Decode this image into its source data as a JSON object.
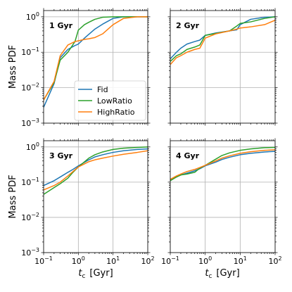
{
  "chart_data": {
    "type": "line",
    "xscale": "log",
    "yscale": "log",
    "xlim": [
      0.1,
      100
    ],
    "ylim": [
      0.001,
      1.5
    ],
    "grid": true,
    "xlabel_main": "t",
    "xlabel_sub": "c",
    "xlabel_unit": "[Gyr]",
    "ylabel": "Mass PDF",
    "x_tick_labels": [
      {
        "base": "10",
        "exp": "−1"
      },
      {
        "base": "10",
        "exp": "0"
      },
      {
        "base": "10",
        "exp": "1"
      },
      {
        "base": "10",
        "exp": "2"
      }
    ],
    "y_tick_labels": [
      {
        "base": "10",
        "exp": "−3"
      },
      {
        "base": "10",
        "exp": "−2"
      },
      {
        "base": "10",
        "exp": "−1"
      },
      {
        "base": "10",
        "exp": "0"
      }
    ],
    "legend": {
      "location": "lower-right (in first panel)",
      "entries": [
        "Fid",
        "LowRatio",
        "HighRatio"
      ]
    },
    "colors": {
      "Fid": "#1f77b4",
      "LowRatio": "#2ca02c",
      "HighRatio": "#ff7f0e"
    },
    "panels": [
      {
        "label": "1 Gyr",
        "series": [
          {
            "name": "Fid",
            "x": [
              0.1,
              0.2,
              0.3,
              0.5,
              0.8,
              1.0,
              1.5,
              2,
              3,
              5,
              10,
              20,
              50,
              100
            ],
            "y": [
              0.0028,
              0.013,
              0.07,
              0.12,
              0.155,
              0.17,
              0.25,
              0.32,
              0.45,
              0.62,
              0.9,
              1.0,
              1.0,
              1.0
            ]
          },
          {
            "name": "LowRatio",
            "x": [
              0.1,
              0.2,
              0.3,
              0.5,
              0.8,
              1.0,
              1.5,
              2,
              3,
              5,
              10,
              20,
              50,
              100
            ],
            "y": [
              0.0045,
              0.014,
              0.06,
              0.1,
              0.2,
              0.42,
              0.6,
              0.7,
              0.85,
              0.97,
              1.0,
              1.0,
              1.0,
              1.0
            ]
          },
          {
            "name": "HighRatio",
            "x": [
              0.1,
              0.2,
              0.3,
              0.5,
              0.8,
              1.0,
              1.5,
              2,
              3,
              5,
              10,
              20,
              50,
              100
            ],
            "y": [
              0.0045,
              0.015,
              0.08,
              0.16,
              0.2,
              0.21,
              0.23,
              0.24,
              0.26,
              0.33,
              0.6,
              0.9,
              1.0,
              1.0
            ]
          }
        ]
      },
      {
        "label": "2 Gyr",
        "series": [
          {
            "name": "Fid",
            "x": [
              0.1,
              0.15,
              0.2,
              0.3,
              0.5,
              0.7,
              1.0,
              2,
              5,
              8,
              10,
              20,
              50,
              100
            ],
            "y": [
              0.065,
              0.1,
              0.13,
              0.17,
              0.2,
              0.22,
              0.3,
              0.35,
              0.4,
              0.43,
              0.6,
              0.85,
              0.97,
              1.0
            ]
          },
          {
            "name": "LowRatio",
            "x": [
              0.1,
              0.15,
              0.2,
              0.3,
              0.5,
              0.7,
              1.0,
              2,
              5,
              8,
              10,
              20,
              50,
              100
            ],
            "y": [
              0.055,
              0.08,
              0.09,
              0.12,
              0.14,
              0.16,
              0.3,
              0.34,
              0.4,
              0.55,
              0.65,
              0.72,
              0.9,
              1.0
            ]
          },
          {
            "name": "HighRatio",
            "x": [
              0.1,
              0.15,
              0.2,
              0.3,
              0.5,
              0.7,
              1.0,
              2,
              5,
              8,
              10,
              20,
              50,
              100
            ],
            "y": [
              0.045,
              0.07,
              0.08,
              0.1,
              0.12,
              0.13,
              0.25,
              0.33,
              0.4,
              0.45,
              0.48,
              0.52,
              0.6,
              0.8
            ]
          }
        ]
      },
      {
        "label": "3 Gyr",
        "series": [
          {
            "name": "Fid",
            "x": [
              0.1,
              0.2,
              0.3,
              0.5,
              0.7,
              1.0,
              2,
              3,
              5,
              10,
              20,
              50,
              100
            ],
            "y": [
              0.08,
              0.11,
              0.14,
              0.19,
              0.23,
              0.29,
              0.43,
              0.52,
              0.6,
              0.7,
              0.78,
              0.85,
              0.88
            ]
          },
          {
            "name": "LowRatio",
            "x": [
              0.1,
              0.2,
              0.3,
              0.5,
              0.7,
              1.0,
              2,
              3,
              5,
              10,
              20,
              50,
              100
            ],
            "y": [
              0.045,
              0.07,
              0.09,
              0.13,
              0.19,
              0.27,
              0.48,
              0.6,
              0.72,
              0.85,
              0.92,
              0.97,
              1.0
            ]
          },
          {
            "name": "HighRatio",
            "x": [
              0.1,
              0.2,
              0.3,
              0.5,
              0.7,
              1.0,
              2,
              3,
              5,
              10,
              20,
              50,
              100
            ],
            "y": [
              0.06,
              0.08,
              0.1,
              0.15,
              0.2,
              0.27,
              0.38,
              0.43,
              0.48,
              0.55,
              0.62,
              0.7,
              0.78
            ]
          }
        ]
      },
      {
        "label": "4 Gyr",
        "series": [
          {
            "name": "Fid",
            "x": [
              0.1,
              0.15,
              0.2,
              0.3,
              0.5,
              0.7,
              1.0,
              2,
              3,
              5,
              10,
              20,
              50,
              100
            ],
            "y": [
              0.12,
              0.14,
              0.16,
              0.18,
              0.21,
              0.24,
              0.29,
              0.37,
              0.44,
              0.51,
              0.6,
              0.66,
              0.72,
              0.75
            ]
          },
          {
            "name": "LowRatio",
            "x": [
              0.1,
              0.15,
              0.2,
              0.3,
              0.5,
              0.7,
              1.0,
              2,
              3,
              5,
              10,
              20,
              50,
              100
            ],
            "y": [
              0.11,
              0.14,
              0.16,
              0.17,
              0.19,
              0.25,
              0.3,
              0.45,
              0.57,
              0.68,
              0.8,
              0.88,
              0.95,
              0.97
            ]
          },
          {
            "name": "HighRatio",
            "x": [
              0.1,
              0.15,
              0.2,
              0.3,
              0.5,
              0.7,
              1.0,
              2,
              3,
              5,
              10,
              20,
              50,
              100
            ],
            "y": [
              0.12,
              0.15,
              0.17,
              0.2,
              0.23,
              0.26,
              0.3,
              0.4,
              0.48,
              0.56,
              0.66,
              0.73,
              0.8,
              0.83
            ]
          }
        ]
      }
    ]
  }
}
